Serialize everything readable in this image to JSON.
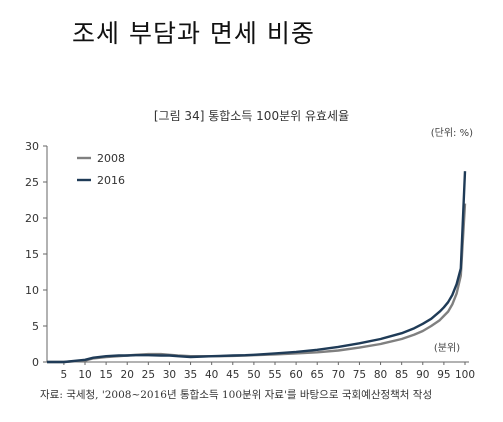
{
  "page": {
    "heading": "조세 부담과 면세 비중",
    "source": "자료: 국세청, '2008~2016년 통합소득 100분위 자료'를 바탕으로 국회예산정책처 작성"
  },
  "chart_data": {
    "type": "line",
    "title": "[그림 34] 통합소득 100분위 유효세율",
    "unit": "(단위: %)",
    "xlabel": "(분위)",
    "ylabel": "",
    "xlim": [
      1,
      100
    ],
    "ylim": [
      0,
      30
    ],
    "xticks": [
      "5",
      "10",
      "15",
      "20",
      "25",
      "30",
      "35",
      "40",
      "45",
      "50",
      "55",
      "60",
      "65",
      "70",
      "75",
      "80",
      "85",
      "90",
      "95",
      "100"
    ],
    "yticks": [
      "0",
      "5",
      "10",
      "15",
      "20",
      "25",
      "30"
    ],
    "grid": false,
    "legend_position": "top-left",
    "series": [
      {
        "name": "2008",
        "color": "#808080",
        "x": [
          1,
          5,
          10,
          12,
          15,
          18,
          20,
          22,
          25,
          28,
          30,
          32,
          35,
          38,
          40,
          42,
          45,
          48,
          50,
          55,
          60,
          65,
          70,
          75,
          80,
          85,
          88,
          90,
          92,
          94,
          95,
          96,
          97,
          98,
          99,
          100
        ],
        "y": [
          0,
          0,
          0.2,
          0.5,
          0.7,
          0.8,
          0.9,
          1.0,
          1.1,
          1.1,
          1.0,
          0.9,
          0.8,
          0.8,
          0.8,
          0.8,
          0.85,
          0.9,
          0.95,
          1.05,
          1.2,
          1.35,
          1.6,
          2.0,
          2.5,
          3.2,
          3.8,
          4.3,
          5.0,
          5.8,
          6.4,
          7.0,
          8.0,
          9.5,
          12.0,
          22.0
        ]
      },
      {
        "name": "2016",
        "color": "#1f3b57",
        "x": [
          1,
          5,
          10,
          12,
          15,
          18,
          20,
          22,
          25,
          28,
          30,
          32,
          35,
          38,
          40,
          42,
          45,
          48,
          50,
          55,
          60,
          65,
          70,
          75,
          80,
          85,
          88,
          90,
          92,
          94,
          95,
          96,
          97,
          98,
          99,
          100
        ],
        "y": [
          0,
          0,
          0.3,
          0.6,
          0.8,
          0.9,
          0.9,
          0.95,
          0.95,
          0.9,
          0.9,
          0.8,
          0.7,
          0.75,
          0.8,
          0.85,
          0.9,
          0.95,
          1.0,
          1.2,
          1.4,
          1.7,
          2.1,
          2.6,
          3.2,
          4.0,
          4.7,
          5.3,
          6.0,
          7.0,
          7.6,
          8.3,
          9.3,
          10.8,
          13.0,
          26.5
        ]
      }
    ]
  }
}
